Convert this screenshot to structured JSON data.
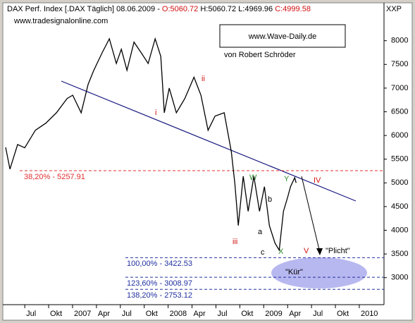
{
  "header": {
    "instrument": "DAX Perf. Index [.DAX  Täglich] 08.06.2009 -",
    "open": "O:5060.72",
    "high_low": "H:5060.72 L:4969.96",
    "close": "C:4999.58",
    "source": "www.tradesignalonline.com",
    "axis_code": "XXP"
  },
  "chart_data": {
    "type": "line",
    "title": "www.Wave-Daily.de",
    "subtitle": "von Robert Schröder",
    "x": [
      -2.4,
      -1.86,
      -0.9,
      0,
      1.33,
      2.65,
      3.98,
      5.31,
      6.02,
      7.08,
      7.96,
      8.67,
      9.73,
      10.62,
      11.5,
      12.12,
      12.83,
      13.72,
      14.6,
      15.49,
      16.37,
      17.08,
      17.52,
      18.14,
      19.03,
      20.09,
      21.24,
      22.12,
      23.01,
      23.89,
      25.04,
      25.93,
      26.37,
      26.81,
      27.43,
      28.05,
      28.76,
      29.47,
      30.09,
      30.71,
      31.42,
      31.95,
      32.48,
      33.01,
      33.36,
      33.89,
      34.07
    ],
    "series": [
      {
        "name": "DAX Perf. Index",
        "color": "#000000",
        "values": [
          5750,
          5290,
          5810,
          5740,
          6110,
          6260,
          6480,
          6780,
          6850,
          6480,
          7080,
          7375,
          7750,
          8040,
          7520,
          7820,
          7375,
          7970,
          7750,
          7520,
          8040,
          7670,
          6480,
          7000,
          6480,
          6780,
          7230,
          6850,
          6110,
          6410,
          6480,
          5660,
          4990,
          4100,
          5140,
          4400,
          5140,
          4400,
          4920,
          4100,
          3730,
          3580,
          4400,
          4700,
          4920,
          5110,
          4999.58
        ]
      }
    ],
    "xlim": [
      -2.4,
      45.1
    ],
    "xticks": [
      {
        "value": 0,
        "label": "Jul"
      },
      {
        "value": 3,
        "label": "Okt"
      },
      {
        "value": 6,
        "label": "2007"
      },
      {
        "value": 9,
        "label": "Apr"
      },
      {
        "value": 12,
        "label": "Jul"
      },
      {
        "value": 15,
        "label": "Okt"
      },
      {
        "value": 18,
        "label": "2008"
      },
      {
        "value": 21,
        "label": "Apr"
      },
      {
        "value": 24,
        "label": "Jul"
      },
      {
        "value": 27,
        "label": "Okt"
      },
      {
        "value": 30,
        "label": "2009"
      },
      {
        "value": 33,
        "label": "Apr"
      },
      {
        "value": 36,
        "label": "Jul"
      },
      {
        "value": 39,
        "label": "Okt"
      },
      {
        "value": 42,
        "label": "2010"
      }
    ],
    "ylim": [
      2460,
      8710
    ],
    "yticks": [
      3000,
      3500,
      4000,
      4500,
      5000,
      5500,
      6000,
      6500,
      7000,
      7500,
      8000
    ],
    "levels": [
      {
        "label": "38,20% - 5257.91",
        "value": 5257.91,
        "color": "#e03030"
      },
      {
        "label": "100,00% - 3422.53",
        "value": 3422.53,
        "color": "#2030a0"
      },
      {
        "label": "123,60% - 3008.97",
        "value": 3008.97,
        "color": "#2030a0"
      },
      {
        "label": "138,20% - 2753.12",
        "value": 2753.12,
        "color": "#2030a0"
      }
    ],
    "annotations": [
      "i",
      "ii",
      "iii",
      "IV",
      "V",
      "a",
      "b",
      "c",
      "W",
      "X",
      "Y",
      "\"Plicht\"",
      "\"Kür\""
    ]
  }
}
